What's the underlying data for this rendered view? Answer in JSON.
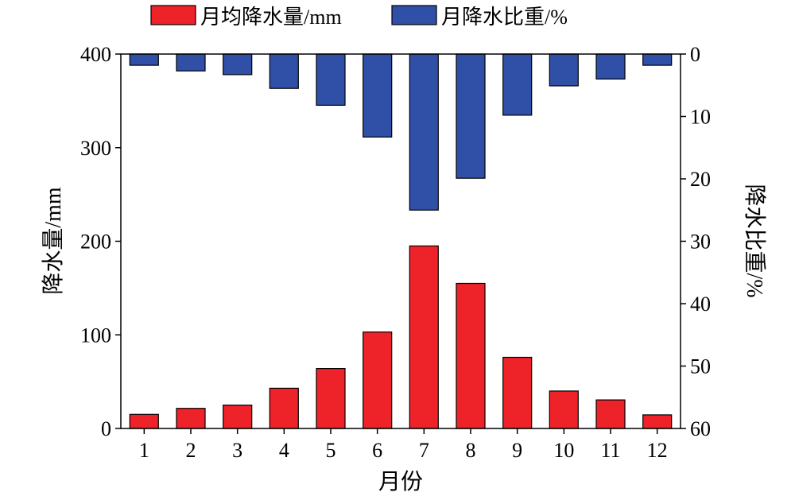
{
  "chart_data": {
    "type": "bar",
    "xlabel": "月份",
    "categories": [
      "1",
      "2",
      "3",
      "4",
      "5",
      "6",
      "7",
      "8",
      "9",
      "10",
      "11",
      "12"
    ],
    "series": [
      {
        "name": "月均降水量/mm",
        "axis": "left",
        "color": "#ee2229",
        "values": [
          15,
          21.5,
          25,
          43,
          64,
          103,
          195,
          155,
          76,
          40,
          30.5,
          14.5
        ]
      },
      {
        "name": "月降水比重/%",
        "axis": "right",
        "direction": "downward-from-top",
        "color": "#3050a8",
        "values": [
          1.8,
          2.7,
          3.3,
          5.5,
          8.2,
          13.3,
          25,
          19.9,
          9.8,
          5.1,
          4,
          1.8
        ]
      }
    ],
    "y_left": {
      "label": "降水量/mm",
      "ylim": [
        0,
        400
      ],
      "ticks": [
        "0",
        "100",
        "200",
        "300",
        "400"
      ]
    },
    "y_right": {
      "label": "降水比重/%",
      "ylim": [
        0,
        60
      ],
      "inverted": true,
      "ticks": [
        "0",
        "10",
        "20",
        "30",
        "40",
        "50",
        "60"
      ]
    },
    "legend_position": "top"
  }
}
